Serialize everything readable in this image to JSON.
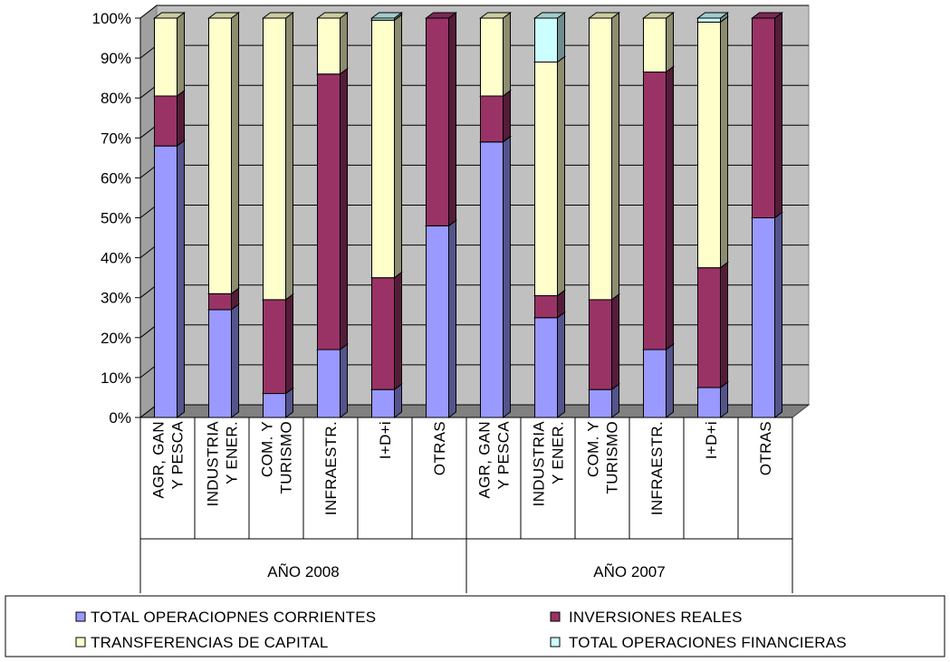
{
  "chart_data": {
    "type": "bar",
    "stacked": "percent",
    "three_d": true,
    "ylim": [
      0,
      100
    ],
    "yticks": [
      "0%",
      "10%",
      "20%",
      "30%",
      "40%",
      "50%",
      "60%",
      "70%",
      "80%",
      "90%",
      "100%"
    ],
    "groups": [
      {
        "label": "AÑO 2008",
        "categories": [
          [
            "AGR, GAN",
            "Y PESCA"
          ],
          [
            "INDUSTRIA",
            "Y ENER."
          ],
          [
            "COM. Y",
            "TURISMO"
          ],
          [
            "INFRAESTR."
          ],
          [
            "I+D+i"
          ],
          [
            "OTRAS"
          ]
        ]
      },
      {
        "label": "AÑO 2007",
        "categories": [
          [
            "AGR, GAN",
            "Y PESCA"
          ],
          [
            "INDUSTRIA",
            "Y ENER."
          ],
          [
            "COM. Y",
            "TURISMO"
          ],
          [
            "INFRAESTR."
          ],
          [
            "I+D+i"
          ],
          [
            "OTRAS"
          ]
        ]
      }
    ],
    "series": [
      {
        "name": "TOTAL OPERACIOPNES CORRIENTES",
        "color": "#9999ff",
        "values": [
          68,
          27,
          6,
          17,
          7,
          48,
          69,
          25,
          7,
          17,
          7.5,
          50
        ]
      },
      {
        "name": "INVERSIONES REALES",
        "color": "#993366",
        "values": [
          12.5,
          4,
          23.5,
          69,
          28,
          52,
          11.5,
          5.5,
          22.5,
          69.5,
          30,
          50
        ]
      },
      {
        "name": "TRANSFERENCIAS DE CAPITAL",
        "color": "#ffffcc",
        "values": [
          19.5,
          69,
          70.5,
          14,
          64.5,
          0,
          19.5,
          58.5,
          70.5,
          13.5,
          61.5,
          0
        ]
      },
      {
        "name": "TOTAL OPERACIONES FINANCIERAS",
        "color": "#ccffff",
        "values": [
          0,
          0,
          0,
          0,
          0.5,
          0,
          0,
          11,
          0,
          0,
          1,
          0
        ]
      }
    ],
    "grid": true,
    "legend_position": "bottom"
  }
}
